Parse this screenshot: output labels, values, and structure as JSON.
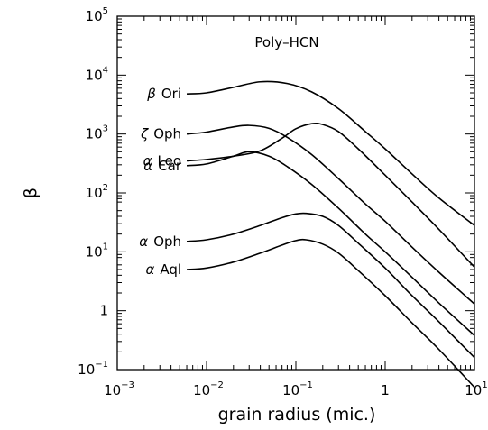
{
  "chart_data": {
    "type": "line",
    "title": "Poly–HCN",
    "xlabel": "grain radius (mic.)",
    "ylabel": "β",
    "x_scale": "log",
    "y_scale": "log",
    "xlim": [
      0.001,
      10
    ],
    "ylim": [
      0.1,
      100000
    ],
    "grid": false,
    "x_ticks": [
      {
        "value": 0.001,
        "base": "10",
        "exp": "−3"
      },
      {
        "value": 0.01,
        "base": "10",
        "exp": "−2"
      },
      {
        "value": 0.1,
        "base": "10",
        "exp": "−1"
      },
      {
        "value": 1,
        "base": "1",
        "exp": ""
      },
      {
        "value": 10,
        "base": "10",
        "exp": "1"
      }
    ],
    "y_ticks": [
      {
        "value": 0.1,
        "base": "10",
        "exp": "−1"
      },
      {
        "value": 1,
        "base": "1",
        "exp": ""
      },
      {
        "value": 10,
        "base": "10",
        "exp": "1"
      },
      {
        "value": 100,
        "base": "10",
        "exp": "2"
      },
      {
        "value": 1000,
        "base": "10",
        "exp": "3"
      },
      {
        "value": 10000,
        "base": "10",
        "exp": "4"
      },
      {
        "value": 100000,
        "base": "10",
        "exp": "5"
      }
    ],
    "series": [
      {
        "name": "β Ori",
        "label_greek": "β",
        "label_rest": "Ori",
        "x": [
          0.006,
          0.01,
          0.02,
          0.04,
          0.08,
          0.15,
          0.3,
          0.6,
          1,
          2,
          4,
          10
        ],
        "y": [
          4800,
          5000,
          6200,
          7700,
          7200,
          5200,
          2700,
          1100,
          560,
          210,
          82,
          28
        ]
      },
      {
        "name": "ζ Oph",
        "label_greek": "ζ",
        "label_rest": "Oph",
        "x": [
          0.006,
          0.01,
          0.02,
          0.03,
          0.05,
          0.08,
          0.15,
          0.3,
          0.6,
          1,
          2,
          4,
          10
        ],
        "y": [
          1000,
          1080,
          1320,
          1400,
          1250,
          880,
          450,
          175,
          65,
          33,
          12,
          4.5,
          1.3
        ]
      },
      {
        "name": "α Leo",
        "label_greek": "α",
        "label_rest": "Leo",
        "x": [
          0.006,
          0.01,
          0.02,
          0.04,
          0.07,
          0.1,
          0.15,
          0.2,
          0.3,
          0.5,
          1,
          2,
          4,
          10
        ],
        "y": [
          350,
          370,
          420,
          520,
          850,
          1230,
          1500,
          1450,
          1100,
          560,
          200,
          70,
          24,
          5.5
        ]
      },
      {
        "name": "α Car",
        "label_greek": "α",
        "label_rest": "Car",
        "x": [
          0.006,
          0.01,
          0.02,
          0.03,
          0.05,
          0.08,
          0.15,
          0.3,
          0.6,
          1,
          2,
          4,
          10
        ],
        "y": [
          290,
          310,
          420,
          500,
          420,
          280,
          140,
          55,
          20,
          10,
          3.7,
          1.35,
          0.38
        ]
      },
      {
        "name": "α Oph",
        "label_greek": "α",
        "label_rest": "Oph",
        "x": [
          0.006,
          0.01,
          0.02,
          0.04,
          0.07,
          0.1,
          0.13,
          0.2,
          0.3,
          0.5,
          1,
          2,
          4,
          10
        ],
        "y": [
          15,
          16,
          20,
          28,
          38,
          44,
          45,
          40,
          28,
          14,
          5.3,
          1.8,
          0.65,
          0.16
        ]
      },
      {
        "name": "α Aql",
        "label_greek": "α",
        "label_rest": "Aql",
        "x": [
          0.006,
          0.01,
          0.02,
          0.04,
          0.07,
          0.1,
          0.13,
          0.2,
          0.3,
          0.5,
          1,
          2,
          4,
          10
        ],
        "y": [
          5,
          5.3,
          6.7,
          9.5,
          13,
          15.5,
          16,
          13.5,
          9.5,
          4.8,
          1.8,
          0.62,
          0.22,
          0.05
        ]
      }
    ]
  }
}
